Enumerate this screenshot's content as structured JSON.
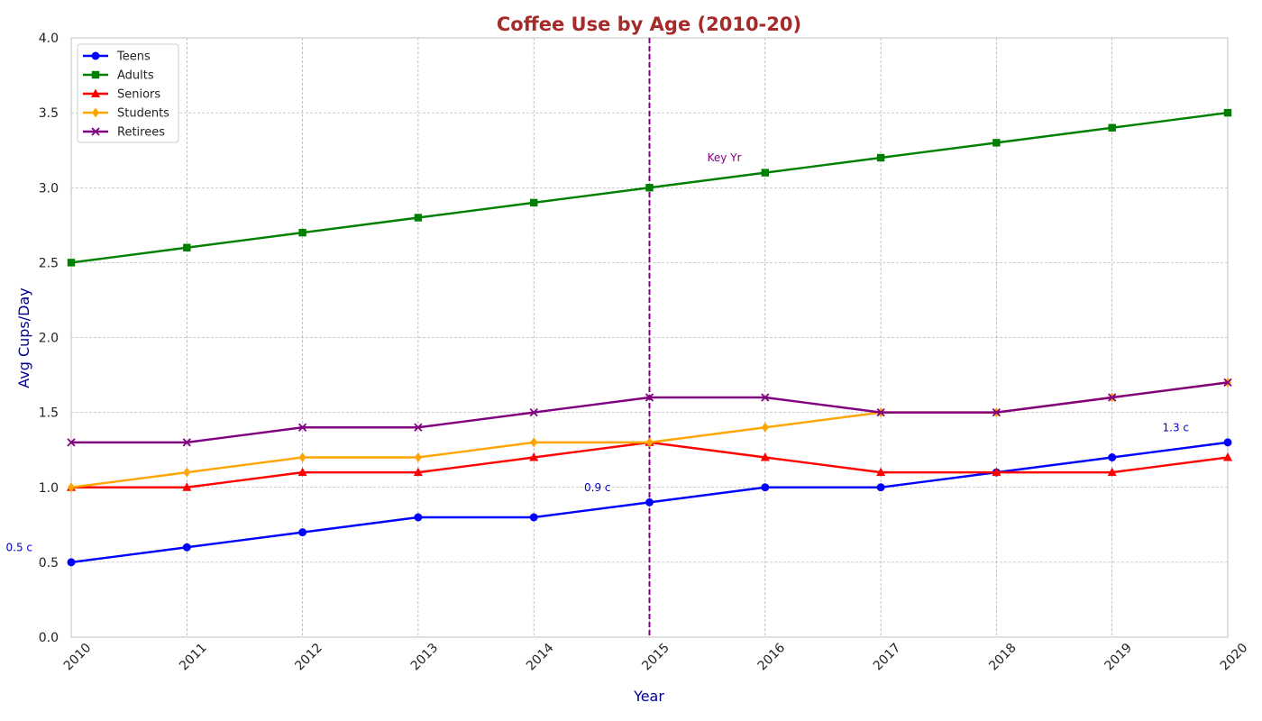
{
  "chart_data": {
    "type": "line",
    "title": "Coffee Use by Age (2010-20)",
    "xlabel": "Year",
    "ylabel": "Avg Cups/Day",
    "x": [
      2010,
      2011,
      2012,
      2013,
      2014,
      2015,
      2016,
      2017,
      2018,
      2019,
      2020
    ],
    "x_tick_labels": [
      "2010",
      "2011",
      "2012",
      "2013",
      "2014",
      "2015",
      "2016",
      "2017",
      "2018",
      "2019",
      "2020"
    ],
    "xlim": [
      2010,
      2020
    ],
    "ylim": [
      0.0,
      4.0
    ],
    "y_ticks": [
      0.0,
      0.5,
      1.0,
      1.5,
      2.0,
      2.5,
      3.0,
      3.5,
      4.0
    ],
    "y_tick_labels": [
      "0.0",
      "0.5",
      "1.0",
      "1.5",
      "2.0",
      "2.5",
      "3.0",
      "3.5",
      "4.0"
    ],
    "grid": true,
    "legend_position": "top-left",
    "series": [
      {
        "name": "Teens",
        "color": "#0000ff",
        "marker": "circle",
        "values": [
          0.5,
          0.6,
          0.7,
          0.8,
          0.8,
          0.9,
          1.0,
          1.0,
          1.1,
          1.2,
          1.3
        ]
      },
      {
        "name": "Adults",
        "color": "#008000",
        "marker": "square",
        "values": [
          2.5,
          2.6,
          2.7,
          2.8,
          2.9,
          3.0,
          3.1,
          3.2,
          3.3,
          3.4,
          3.5
        ]
      },
      {
        "name": "Seniors",
        "color": "#ff0000",
        "marker": "triangle",
        "values": [
          1.0,
          1.0,
          1.1,
          1.1,
          1.2,
          1.3,
          1.2,
          1.1,
          1.1,
          1.1,
          1.2
        ]
      },
      {
        "name": "Students",
        "color": "#ffa500",
        "marker": "diamond",
        "values": [
          1.0,
          1.1,
          1.2,
          1.2,
          1.3,
          1.3,
          1.4,
          1.5,
          1.5,
          1.6,
          1.7
        ]
      },
      {
        "name": "Retirees",
        "color": "#800080",
        "marker": "x",
        "values": [
          1.3,
          1.3,
          1.4,
          1.4,
          1.5,
          1.6,
          1.6,
          1.5,
          1.5,
          1.6,
          1.7
        ]
      }
    ],
    "vline": {
      "x": 2015,
      "color": "#800080",
      "label": "Key Yr",
      "label_x": 2015.5,
      "label_y": 3.2
    },
    "annotations": [
      {
        "text": "0.5 c",
        "x": 2009.55,
        "y": 0.6,
        "color": "#0000cd"
      },
      {
        "text": "0.9 c",
        "x": 2014.55,
        "y": 1.0,
        "color": "#0000cd"
      },
      {
        "text": "1.3 c",
        "x": 2019.55,
        "y": 1.4,
        "color": "#0000cd"
      }
    ]
  }
}
